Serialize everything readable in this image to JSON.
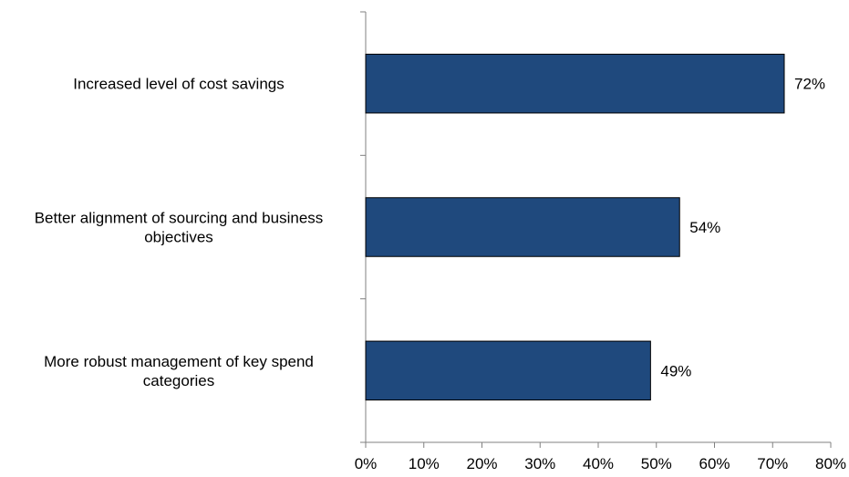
{
  "chart_data": {
    "type": "bar",
    "orientation": "horizontal",
    "title": "",
    "xlabel": "",
    "ylabel": "",
    "categories": [
      [
        "Increased level of cost savings"
      ],
      [
        "Better alignment of sourcing and business",
        "objectives"
      ],
      [
        "More robust management of key spend",
        "categories"
      ]
    ],
    "values": [
      72,
      54,
      49
    ],
    "value_labels": [
      "72%",
      "54%",
      "49%"
    ],
    "xlim": [
      0,
      80
    ],
    "ticks": [
      0,
      10,
      20,
      30,
      40,
      50,
      60,
      70,
      80
    ],
    "tick_labels": [
      "0%",
      "10%",
      "20%",
      "30%",
      "40%",
      "50%",
      "60%",
      "70%",
      "80%"
    ],
    "grid": false,
    "legend": "none",
    "bar_color": "#1F497D"
  }
}
